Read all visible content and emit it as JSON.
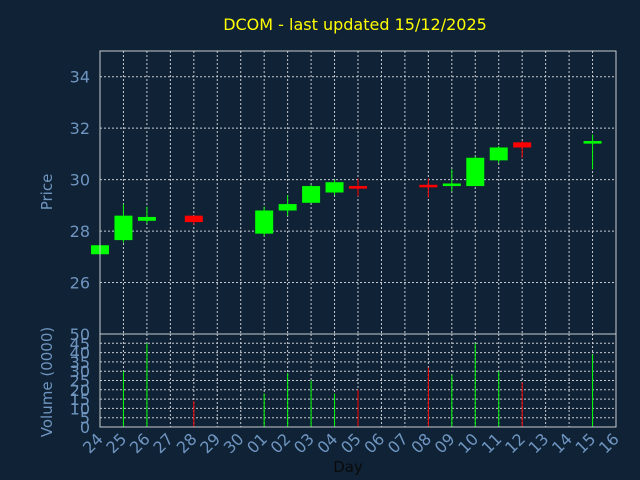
{
  "chart_data": {
    "type": "candlestick",
    "title": "DCOM - last updated 15/12/2025",
    "xlabel": "Day",
    "x_ticks": [
      "24",
      "25",
      "26",
      "27",
      "28",
      "29",
      "30",
      "01",
      "02",
      "03",
      "04",
      "05",
      "06",
      "07",
      "08",
      "09",
      "10",
      "11",
      "12",
      "13",
      "14",
      "15",
      "16"
    ],
    "price": {
      "ylabel": "Price",
      "ylim": [
        24.0,
        35.0
      ],
      "yticks": [
        26,
        28,
        30,
        32,
        34
      ],
      "candles": [
        {
          "x": 0,
          "open": 27.1,
          "high": 27.45,
          "low": 27.1,
          "close": 27.45
        },
        {
          "x": 1,
          "open": 27.65,
          "high": 29.05,
          "low": 27.55,
          "close": 28.6
        },
        {
          "x": 2,
          "open": 28.4,
          "high": 28.95,
          "low": 28.3,
          "close": 28.55
        },
        {
          "x": 4,
          "open": 28.6,
          "high": 28.6,
          "low": 28.25,
          "close": 28.35
        },
        {
          "x": 7,
          "open": 27.9,
          "high": 28.95,
          "low": 27.8,
          "close": 28.8
        },
        {
          "x": 8,
          "open": 28.8,
          "high": 29.4,
          "low": 28.6,
          "close": 29.05
        },
        {
          "x": 9,
          "open": 29.1,
          "high": 29.8,
          "low": 29.1,
          "close": 29.75
        },
        {
          "x": 10,
          "open": 29.5,
          "high": 30.0,
          "low": 29.4,
          "close": 29.9
        },
        {
          "x": 11,
          "open": 29.75,
          "high": 30.05,
          "low": 29.35,
          "close": 29.65
        },
        {
          "x": 14,
          "open": 29.8,
          "high": 30.05,
          "low": 29.3,
          "close": 29.7
        },
        {
          "x": 15,
          "open": 29.75,
          "high": 30.4,
          "low": 29.55,
          "close": 29.85
        },
        {
          "x": 16,
          "open": 29.75,
          "high": 30.9,
          "low": 29.75,
          "close": 30.85
        },
        {
          "x": 17,
          "open": 30.75,
          "high": 31.3,
          "low": 30.65,
          "close": 31.25
        },
        {
          "x": 18,
          "open": 31.45,
          "high": 31.5,
          "low": 30.85,
          "close": 31.25
        },
        {
          "x": 21,
          "open": 31.4,
          "high": 31.75,
          "low": 30.4,
          "close": 31.5
        }
      ]
    },
    "volume": {
      "ylabel": "Volume (0000)",
      "ylim": [
        0,
        50
      ],
      "yticks": [
        0,
        5,
        10,
        15,
        20,
        25,
        30,
        35,
        40,
        45,
        50
      ],
      "bars": [
        {
          "x": 1,
          "value": 30,
          "dir": "up"
        },
        {
          "x": 2,
          "value": 45,
          "dir": "up"
        },
        {
          "x": 4,
          "value": 14,
          "dir": "down"
        },
        {
          "x": 7,
          "value": 18,
          "dir": "up"
        },
        {
          "x": 8,
          "value": 29,
          "dir": "up"
        },
        {
          "x": 9,
          "value": 25,
          "dir": "up"
        },
        {
          "x": 10,
          "value": 18,
          "dir": "up"
        },
        {
          "x": 11,
          "value": 20,
          "dir": "down"
        },
        {
          "x": 14,
          "value": 32,
          "dir": "down"
        },
        {
          "x": 15,
          "value": 28,
          "dir": "up"
        },
        {
          "x": 16,
          "value": 45,
          "dir": "up"
        },
        {
          "x": 17,
          "value": 30,
          "dir": "up"
        },
        {
          "x": 18,
          "value": 24,
          "dir": "down"
        },
        {
          "x": 21,
          "value": 39,
          "dir": "up"
        }
      ]
    },
    "grid": true,
    "colors": {
      "background": "#0f2236",
      "title": "#ffff00",
      "axis_text": "#6f95c0",
      "axis_line": "#c8ccd2",
      "grid": "#c8ccd2",
      "up": "#00ff00",
      "down": "#ff0000"
    }
  }
}
